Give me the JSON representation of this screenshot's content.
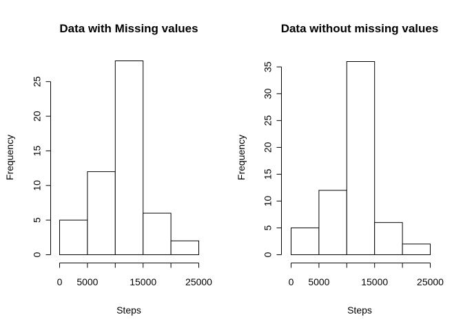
{
  "chart_data": [
    {
      "type": "bar",
      "title": "Data with Missing values",
      "xlabel": "Steps",
      "ylabel": "Frequency",
      "bins": [
        [
          0,
          5000
        ],
        [
          5000,
          10000
        ],
        [
          10000,
          15000
        ],
        [
          15000,
          20000
        ],
        [
          20000,
          25000
        ]
      ],
      "values": [
        5,
        12,
        28,
        6,
        2
      ],
      "xticks": [
        0,
        5000,
        10000,
        15000,
        20000,
        25000
      ],
      "xtick_labels": [
        "0",
        "5000",
        "",
        "15000",
        "",
        "25000"
      ],
      "yticks": [
        0,
        5,
        10,
        15,
        20,
        25
      ],
      "ytick_labels": [
        "0",
        "5",
        "10",
        "15",
        "20",
        "25"
      ],
      "xlim": [
        0,
        25000
      ],
      "ylim": [
        0,
        28
      ]
    },
    {
      "type": "bar",
      "title": "Data without missing values",
      "xlabel": "Steps",
      "ylabel": "Frequency",
      "bins": [
        [
          0,
          5000
        ],
        [
          5000,
          10000
        ],
        [
          10000,
          15000
        ],
        [
          15000,
          20000
        ],
        [
          20000,
          25000
        ]
      ],
      "values": [
        5,
        12,
        36,
        6,
        2
      ],
      "xticks": [
        0,
        5000,
        10000,
        15000,
        20000,
        25000
      ],
      "xtick_labels": [
        "0",
        "5000",
        "",
        "15000",
        "",
        "25000"
      ],
      "yticks": [
        0,
        5,
        10,
        15,
        20,
        25,
        30,
        35
      ],
      "ytick_labels": [
        "0",
        "5",
        "10",
        "15",
        "20",
        "25",
        "30",
        "35"
      ],
      "xlim": [
        0,
        25000
      ],
      "ylim": [
        0,
        36
      ]
    }
  ]
}
